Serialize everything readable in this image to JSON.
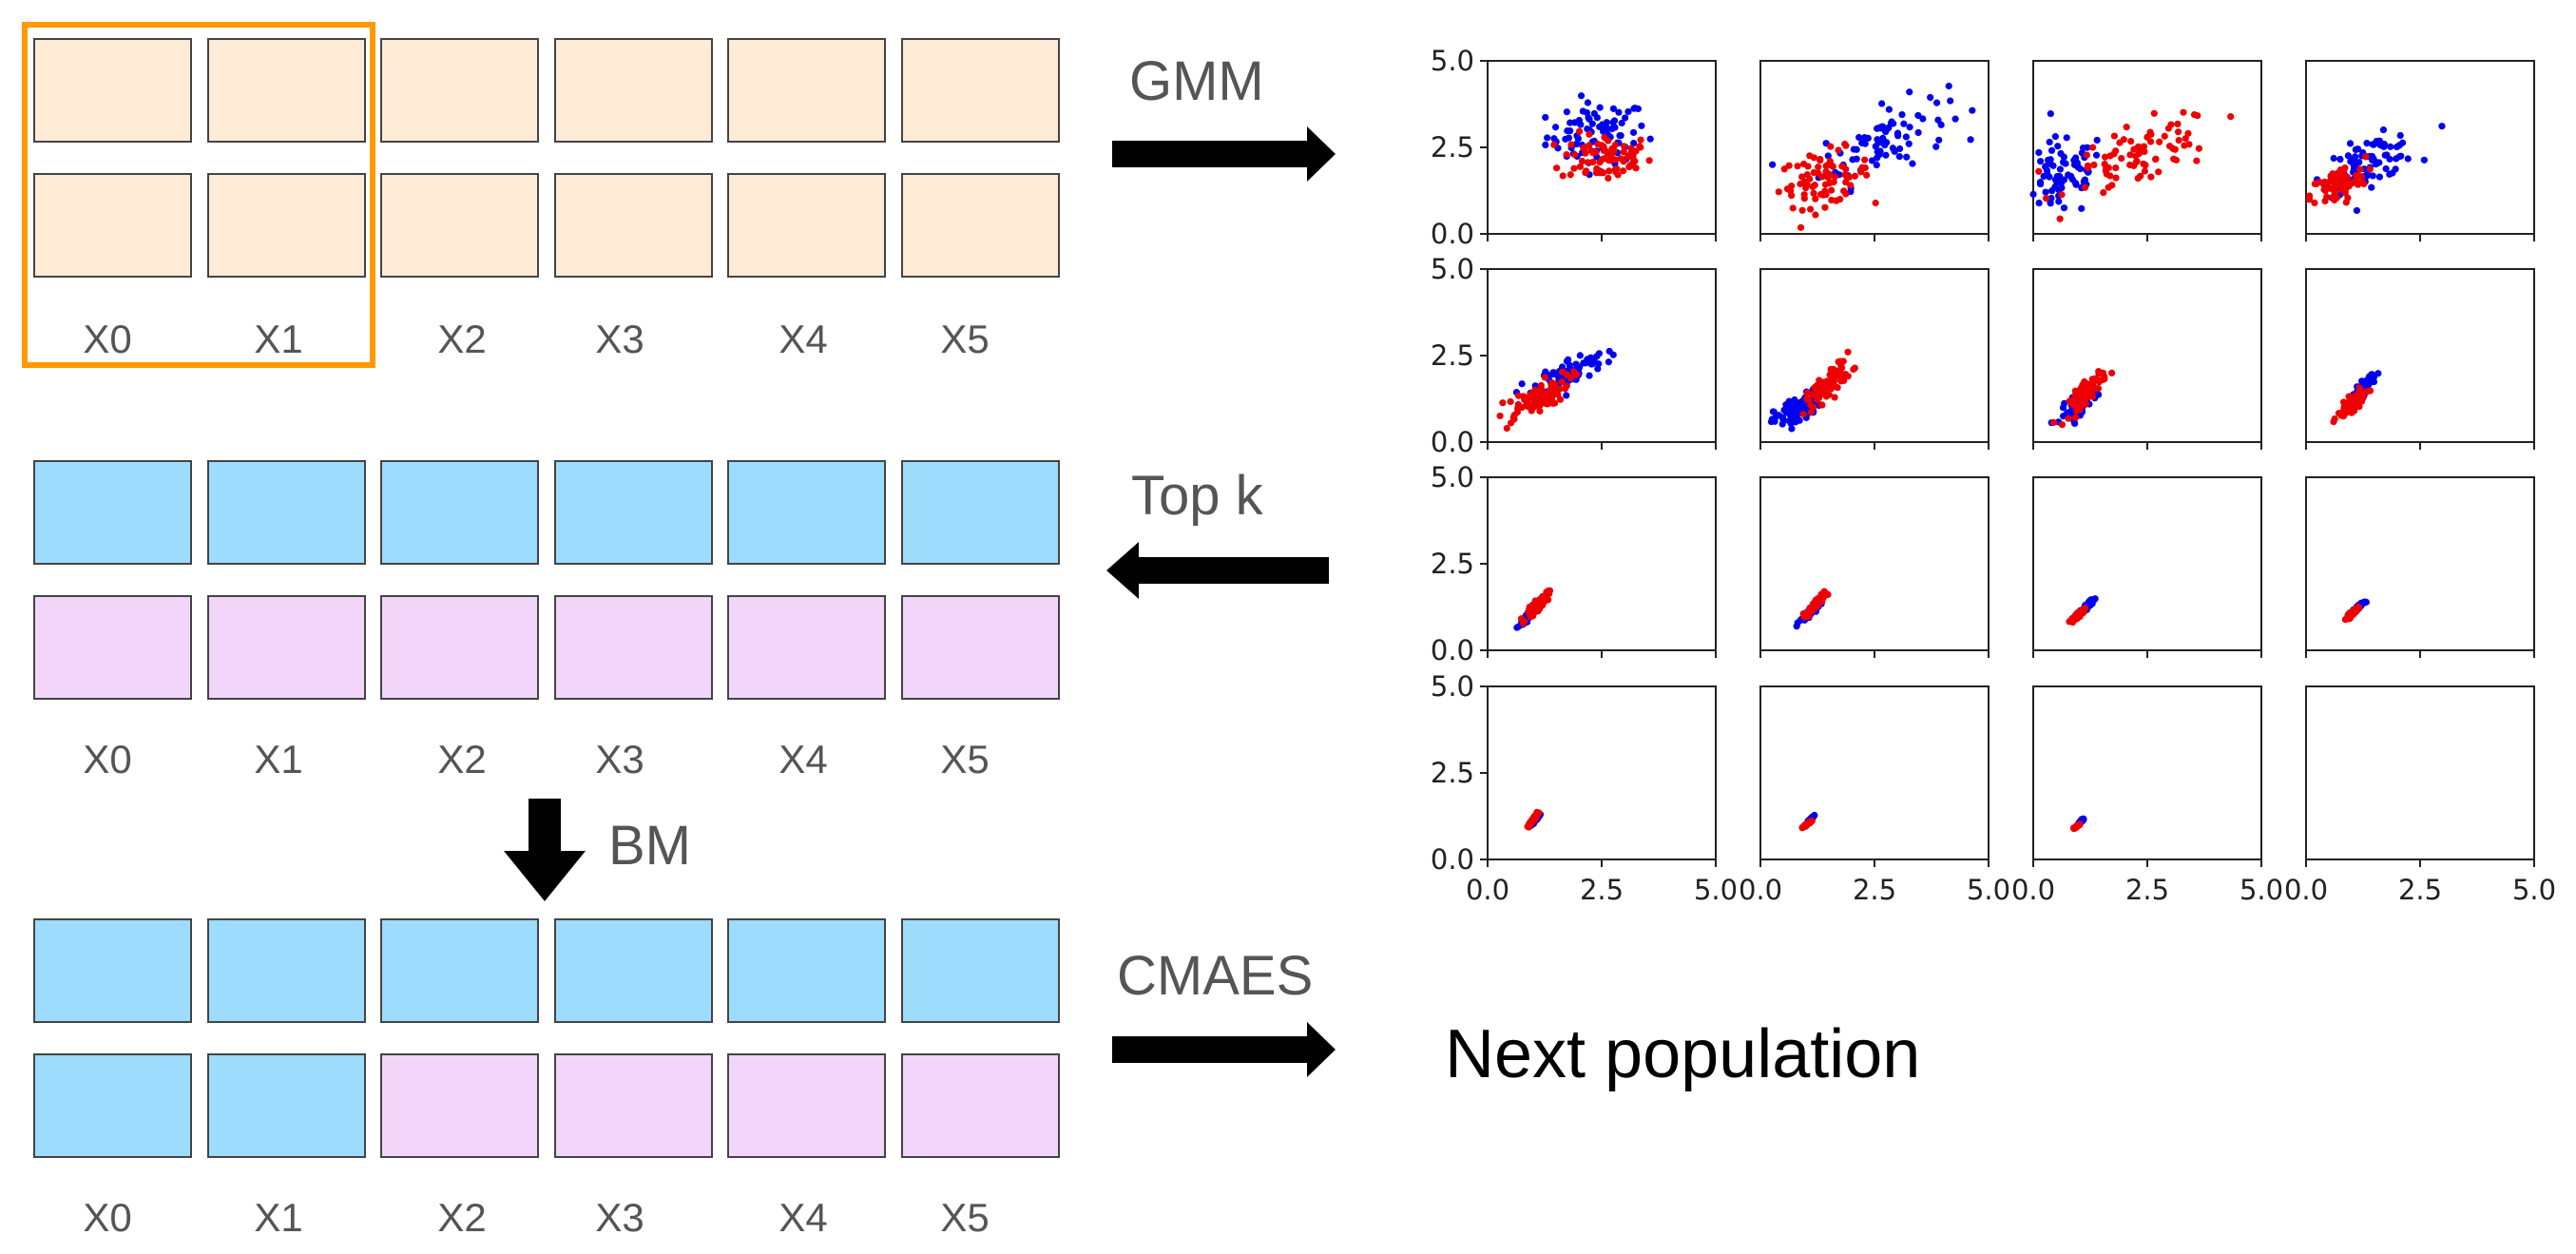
{
  "colors": {
    "beige": "#fdebd6",
    "blue": "#9ddcfd",
    "pink": "#f1d6fa",
    "highlight": "#ff9900",
    "series_blue": "#0000ee",
    "series_red": "#ee0000"
  },
  "row_labels": [
    "X0",
    "X1",
    "X2",
    "X3",
    "X4",
    "X5"
  ],
  "grids": [
    {
      "name": "population",
      "rows": [
        [
          "beige",
          "beige",
          "beige",
          "beige",
          "beige",
          "beige"
        ],
        [
          "beige",
          "beige",
          "beige",
          "beige",
          "beige",
          "beige"
        ]
      ],
      "highlight_cols": [
        0,
        1
      ]
    },
    {
      "name": "top-k",
      "rows": [
        [
          "blue",
          "blue",
          "blue",
          "blue",
          "blue",
          "blue"
        ],
        [
          "pink",
          "pink",
          "pink",
          "pink",
          "pink",
          "pink"
        ]
      ]
    },
    {
      "name": "bm",
      "rows": [
        [
          "blue",
          "blue",
          "blue",
          "blue",
          "blue",
          "blue"
        ],
        [
          "blue",
          "blue",
          "pink",
          "pink",
          "pink",
          "pink"
        ]
      ]
    }
  ],
  "arrows": {
    "gmm": "GMM",
    "topk": "Top k",
    "bm": "BM",
    "cmaes": "CMAES"
  },
  "next_population": "Next population",
  "chart_data": {
    "type": "scatter",
    "layout": "4x4 small multiples",
    "xlim": [
      0,
      5
    ],
    "ylim": [
      0,
      5
    ],
    "xticks": [
      "0.0",
      "2.5",
      "5.0"
    ],
    "yticks": [
      "0.0",
      "2.5",
      "5.0"
    ],
    "series_names": [
      "blue",
      "red"
    ],
    "panels": [
      {
        "blue": {
          "cx": 2.4,
          "cy": 2.9,
          "sx": 0.55,
          "sy": 0.45,
          "r": 0.1
        },
        "red": {
          "cx": 2.6,
          "cy": 2.2,
          "sx": 0.5,
          "sy": 0.35,
          "r": 0.0
        }
      },
      {
        "blue": {
          "cx": 2.7,
          "cy": 2.7,
          "sx": 0.7,
          "sy": 0.6,
          "r": 0.6
        },
        "red": {
          "cx": 1.4,
          "cy": 1.6,
          "sx": 0.5,
          "sy": 0.4,
          "r": 0.3
        }
      },
      {
        "blue": {
          "cx": 0.6,
          "cy": 1.6,
          "sx": 0.5,
          "sy": 0.6,
          "r": 0.2
        },
        "red": {
          "cx": 2.4,
          "cy": 2.3,
          "sx": 0.8,
          "sy": 0.55,
          "r": 0.6
        }
      },
      {
        "blue": {
          "cx": 1.4,
          "cy": 2.1,
          "sx": 0.5,
          "sy": 0.4,
          "r": 0.6
        },
        "red": {
          "cx": 0.7,
          "cy": 1.4,
          "sx": 0.3,
          "sy": 0.3,
          "r": 0.5
        }
      },
      {
        "blue": {
          "cx": 1.8,
          "cy": 2.0,
          "sx": 0.4,
          "sy": 0.3,
          "r": 0.7
        },
        "red": {
          "cx": 1.0,
          "cy": 1.2,
          "sx": 0.4,
          "sy": 0.35,
          "r": 0.8
        }
      },
      {
        "blue": {
          "cx": 0.8,
          "cy": 0.9,
          "sx": 0.25,
          "sy": 0.25,
          "r": 0.6
        },
        "red": {
          "cx": 1.5,
          "cy": 1.7,
          "sx": 0.25,
          "sy": 0.35,
          "r": 0.8
        }
      },
      {
        "blue": {
          "cx": 1.0,
          "cy": 1.1,
          "sx": 0.2,
          "sy": 0.25,
          "r": 0.8
        },
        "red": {
          "cx": 1.2,
          "cy": 1.5,
          "sx": 0.2,
          "sy": 0.3,
          "r": 0.85
        }
      },
      {
        "blue": {
          "cx": 1.25,
          "cy": 1.55,
          "sx": 0.12,
          "sy": 0.2,
          "r": 0.85
        },
        "red": {
          "cx": 1.0,
          "cy": 1.1,
          "sx": 0.15,
          "sy": 0.2,
          "r": 0.85
        }
      },
      {
        "blue": {
          "cx": 0.9,
          "cy": 1.0,
          "sx": 0.1,
          "sy": 0.15,
          "r": 0.9
        },
        "red": {
          "cx": 1.1,
          "cy": 1.3,
          "sx": 0.12,
          "sy": 0.18,
          "r": 0.9
        }
      },
      {
        "blue": {
          "cx": 1.05,
          "cy": 1.05,
          "sx": 0.1,
          "sy": 0.12,
          "r": 0.9
        },
        "red": {
          "cx": 1.2,
          "cy": 1.3,
          "sx": 0.1,
          "sy": 0.15,
          "r": 0.9
        }
      },
      {
        "blue": {
          "cx": 1.2,
          "cy": 1.3,
          "sx": 0.07,
          "sy": 0.1,
          "r": 0.92
        },
        "red": {
          "cx": 1.0,
          "cy": 1.05,
          "sx": 0.08,
          "sy": 0.1,
          "r": 0.92
        }
      },
      {
        "blue": {
          "cx": 1.15,
          "cy": 1.25,
          "sx": 0.06,
          "sy": 0.08,
          "r": 0.92
        },
        "red": {
          "cx": 1.0,
          "cy": 1.05,
          "sx": 0.06,
          "sy": 0.08,
          "r": 0.92
        }
      },
      {
        "blue": {
          "cx": 1.05,
          "cy": 1.15,
          "sx": 0.04,
          "sy": 0.06,
          "r": 0.95
        },
        "red": {
          "cx": 1.0,
          "cy": 1.15,
          "sx": 0.05,
          "sy": 0.09,
          "r": 0.95
        }
      },
      {
        "blue": {
          "cx": 1.1,
          "cy": 1.15,
          "sx": 0.03,
          "sy": 0.05,
          "r": 0.95
        },
        "red": {
          "cx": 1.0,
          "cy": 1.0,
          "sx": 0.04,
          "sy": 0.04,
          "r": 0.95
        }
      },
      {
        "blue": {
          "cx": 1.05,
          "cy": 1.1,
          "sx": 0.03,
          "sy": 0.04,
          "r": 0.95
        },
        "red": {
          "cx": 0.95,
          "cy": 0.95,
          "sx": 0.03,
          "sy": 0.03,
          "r": 0.95
        }
      },
      {
        "blue": null,
        "red": null
      }
    ]
  }
}
